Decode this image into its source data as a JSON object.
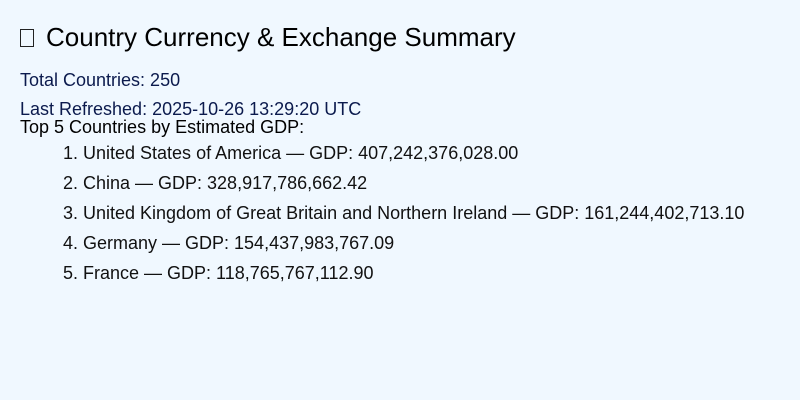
{
  "header": {
    "icon": "globe-icon",
    "title": "Country Currency & Exchange Summary"
  },
  "stats": {
    "total_countries": "Total Countries: 250",
    "last_refreshed": "Last Refreshed: 2025-10-26 13:29:20 UTC"
  },
  "top_gdp": {
    "heading": "Top 5 Countries by Estimated GDP:",
    "items": [
      {
        "num": "1.",
        "text": "United States of America — GDP: 407,242,376,028.00"
      },
      {
        "num": "2.",
        "text": "China — GDP: 328,917,786,662.42"
      },
      {
        "num": "3.",
        "text": "United Kingdom of Great Britain and Northern Ireland — GDP: 161,244,402,713.10"
      },
      {
        "num": "4.",
        "text": "Germany — GDP: 154,437,983,767.09"
      },
      {
        "num": "5.",
        "text": "France — GDP: 118,765,767,112.90"
      }
    ]
  }
}
